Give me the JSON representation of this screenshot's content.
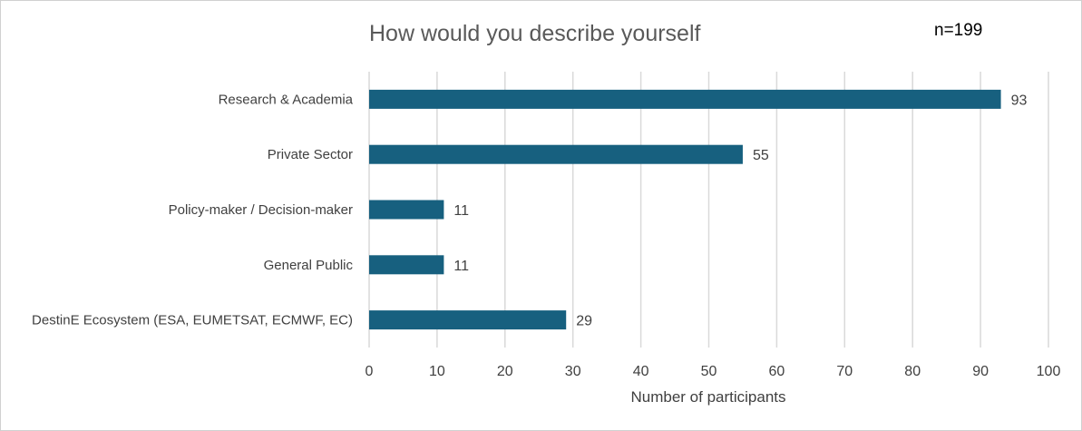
{
  "chart_data": {
    "type": "bar",
    "orientation": "horizontal",
    "title": "How would you describe yourself",
    "annotation": "n=199",
    "categories": [
      "Research & Academia",
      "Private Sector",
      "Policy-maker / Decision-maker",
      "General Public",
      "DestinE Ecosystem (ESA, EUMETSAT, ECMWF, EC)"
    ],
    "values": [
      93,
      55,
      11,
      11,
      29
    ],
    "xlabel": "Number of participants",
    "ylabel": "",
    "xlim": [
      0,
      100
    ],
    "xticks": [
      "0",
      "10",
      "20",
      "30",
      "40",
      "50",
      "60",
      "70",
      "80",
      "90",
      "100"
    ],
    "grid": "vertical",
    "legend": "none",
    "bar_color": "#17607f",
    "grid_color": "#d9d9d9"
  }
}
